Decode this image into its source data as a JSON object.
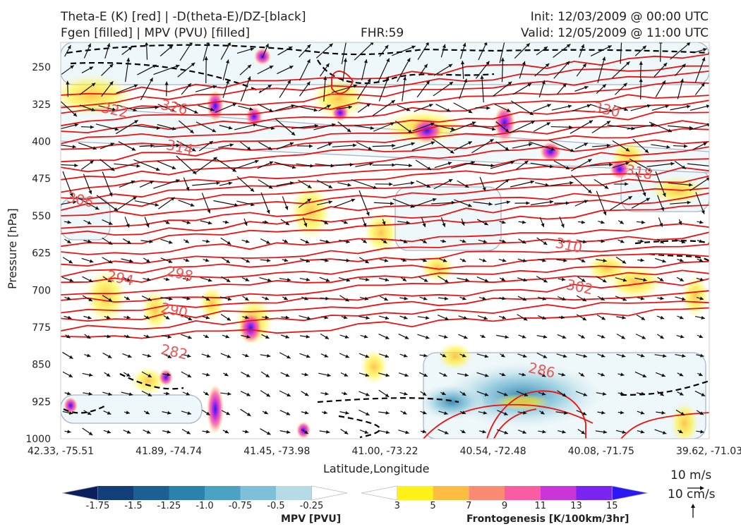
{
  "header": {
    "title_left_1": "Theta-E (K) [red] | -D(theta-E)/DZ-[black]",
    "title_left_2": "Fgen [filled] | MPV (PVU) [filled]",
    "title_center": "FHR:59",
    "title_right_1": "Init: 12/03/2009 @ 00:00 UTC",
    "title_right_2": "Valid: 12/05/2009 @ 11:00 UTC"
  },
  "chart_data": {
    "type": "cross-section",
    "xlabel": "Latitude,Longitude",
    "ylabel": "Pressure [hPa]",
    "x_ticks": [
      "42.33, -75.51",
      "41.89, -74.74",
      "41.45, -73.98",
      "41.00, -73.22",
      "40.54, -72.48",
      "40.08, -71.75",
      "39.62, -71.03"
    ],
    "y_ticks": [
      250,
      325,
      400,
      475,
      550,
      625,
      700,
      775,
      850,
      925,
      1000
    ],
    "ylim": [
      1000,
      200
    ],
    "theta_e_contour_labels": [
      {
        "value": "282",
        "x_index": 1.05,
        "p": 826
      },
      {
        "value": "286",
        "x_index": 4.45,
        "p": 863
      },
      {
        "value": "290",
        "x_index": 1.05,
        "p": 742
      },
      {
        "value": "294",
        "x_index": 0.55,
        "p": 677
      },
      {
        "value": "298",
        "x_index": 1.1,
        "p": 668
      },
      {
        "value": "302",
        "x_index": 4.8,
        "p": 695
      },
      {
        "value": "306",
        "x_index": 0.18,
        "p": 519
      },
      {
        "value": "310",
        "x_index": 4.7,
        "p": 611
      },
      {
        "value": "314",
        "x_index": 1.1,
        "p": 413
      },
      {
        "value": "318",
        "x_index": 5.35,
        "p": 463
      },
      {
        "value": "322",
        "x_index": 0.5,
        "p": 338
      },
      {
        "value": "326",
        "x_index": 1.05,
        "p": 332
      },
      {
        "value": "330",
        "x_index": 5.05,
        "p": 337
      }
    ],
    "colorbar_mpv": {
      "label": "MPV [PVU]",
      "ticks": [
        "-1.75",
        "-1.5",
        "-1.25",
        "-1.0",
        "-0.75",
        "-0.5",
        "-0.25"
      ],
      "colors": [
        "#0b1f5e",
        "#123f7a",
        "#1b5f95",
        "#2a82ad",
        "#4aa2c4",
        "#7dc0d7",
        "#b7dbe6",
        "#ffffff"
      ]
    },
    "colorbar_fgen": {
      "label": "Frontogenesis [K/100km/3hr]",
      "ticks": [
        "3",
        "5",
        "7",
        "9",
        "11",
        "13",
        "15"
      ],
      "colors": [
        "#ffffff",
        "#fff21a",
        "#fdbd40",
        "#fb8a73",
        "#f95ca0",
        "#c935d8",
        "#7a24f2",
        "#2a19f5"
      ]
    },
    "wind_reference": {
      "horizontal": "10 m/s",
      "vertical": "10 cm/s"
    }
  }
}
